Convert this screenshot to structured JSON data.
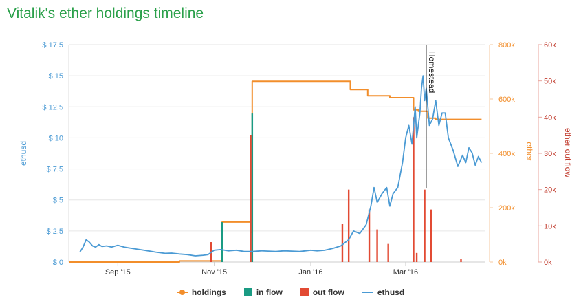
{
  "page": {
    "title": "Vitalik's ether holdings timeline"
  },
  "chart_data": {
    "type": "line",
    "title": "Vitalik's ether holdings timeline",
    "x_range": [
      "2015-08-01",
      "2016-04-20"
    ],
    "x_ticks": [
      "2015-09-01",
      "2015-11-01",
      "2016-01-01",
      "2016-03-01"
    ],
    "x_tick_labels": [
      "Sep '15",
      "Nov '15",
      "Jan '16",
      "Mar '16"
    ],
    "axes": {
      "left": {
        "label": "ethusd",
        "color": "#4a9ad4",
        "range": [
          0,
          17.5
        ],
        "ticks": [
          0,
          2.5,
          5,
          7.5,
          10,
          12.5,
          15,
          17.5
        ],
        "tick_labels": [
          "$ 0",
          "$ 2.5",
          "$ 5",
          "$ 7.5",
          "$ 10",
          "$ 12.5",
          "$ 15",
          "$ 17.5"
        ]
      },
      "ether": {
        "label": "ether",
        "color": "#f28e2b",
        "range": [
          0,
          800000
        ],
        "ticks": [
          0,
          200000,
          400000,
          600000,
          800000
        ],
        "tick_labels": [
          "0k",
          "200k",
          "400k",
          "600k",
          "800k"
        ]
      },
      "flow": {
        "label": "ether out flow",
        "color": "#c0392b",
        "range": [
          0,
          60000
        ],
        "ticks": [
          0,
          10000,
          20000,
          30000,
          40000,
          50000,
          60000
        ],
        "tick_labels": [
          "0k",
          "10k",
          "20k",
          "30k",
          "40k",
          "50k",
          "60k"
        ]
      }
    },
    "annotations": [
      {
        "text": "Homestead",
        "x": "2016-03-14"
      }
    ],
    "series": [
      {
        "name": "holdings",
        "kind": "step",
        "axis": "ether",
        "color": "#f28e2b",
        "x": [
          "2015-08-01",
          "2015-10-10",
          "2015-10-10",
          "2015-11-06",
          "2015-11-06",
          "2015-11-24",
          "2015-11-24",
          "2015-11-25",
          "2015-11-25",
          "2016-01-26",
          "2016-01-26",
          "2016-02-06",
          "2016-02-06",
          "2016-02-20",
          "2016-02-20",
          "2016-03-06",
          "2016-03-06",
          "2016-03-09",
          "2016-03-09",
          "2016-03-15",
          "2016-03-15",
          "2016-03-20",
          "2016-03-20",
          "2016-04-18"
        ],
        "values": [
          0,
          0,
          4000,
          4000,
          147000,
          147000,
          110000,
          110000,
          665000,
          665000,
          635000,
          635000,
          612000,
          612000,
          605000,
          605000,
          560000,
          560000,
          555000,
          555000,
          530000,
          530000,
          525000,
          525000
        ]
      },
      {
        "name": "in flow",
        "kind": "bar",
        "axis": "flow",
        "color": "#1a9b83",
        "x": [
          "2015-11-06",
          "2015-11-25"
        ],
        "values": [
          11000,
          41000
        ]
      },
      {
        "name": "out flow",
        "kind": "bar",
        "axis": "flow",
        "color": "#e24a33",
        "x": [
          "2015-10-30",
          "2015-11-24",
          "2016-01-21",
          "2016-01-25",
          "2016-02-07",
          "2016-02-12",
          "2016-02-19",
          "2016-03-06",
          "2016-03-08",
          "2016-03-13",
          "2016-03-17",
          "2016-04-05"
        ],
        "values": [
          5500,
          35000,
          10500,
          20000,
          14500,
          9000,
          5000,
          40000,
          2500,
          20000,
          14500,
          800
        ]
      },
      {
        "name": "ethusd",
        "kind": "line",
        "axis": "left",
        "color": "#4a9ad4",
        "x": [
          "2015-08-08",
          "2015-08-10",
          "2015-08-12",
          "2015-08-14",
          "2015-08-16",
          "2015-08-18",
          "2015-08-20",
          "2015-08-22",
          "2015-08-25",
          "2015-08-28",
          "2015-09-01",
          "2015-09-05",
          "2015-09-10",
          "2015-09-15",
          "2015-09-20",
          "2015-09-25",
          "2015-10-01",
          "2015-10-05",
          "2015-10-10",
          "2015-10-15",
          "2015-10-20",
          "2015-10-25",
          "2015-10-28",
          "2015-11-01",
          "2015-11-05",
          "2015-11-10",
          "2015-11-15",
          "2015-11-20",
          "2015-11-25",
          "2015-12-01",
          "2015-12-05",
          "2015-12-10",
          "2015-12-15",
          "2015-12-20",
          "2015-12-25",
          "2016-01-01",
          "2016-01-05",
          "2016-01-10",
          "2016-01-15",
          "2016-01-20",
          "2016-01-25",
          "2016-01-28",
          "2016-02-01",
          "2016-02-05",
          "2016-02-08",
          "2016-02-10",
          "2016-02-12",
          "2016-02-15",
          "2016-02-18",
          "2016-02-20",
          "2016-02-22",
          "2016-02-25",
          "2016-02-28",
          "2016-03-01",
          "2016-03-03",
          "2016-03-05",
          "2016-03-07",
          "2016-03-08",
          "2016-03-10",
          "2016-03-11",
          "2016-03-12",
          "2016-03-13",
          "2016-03-14",
          "2016-03-16",
          "2016-03-18",
          "2016-03-20",
          "2016-03-22",
          "2016-03-24",
          "2016-03-26",
          "2016-03-28",
          "2016-03-31",
          "2016-04-03",
          "2016-04-06",
          "2016-04-08",
          "2016-04-10",
          "2016-04-12",
          "2016-04-14",
          "2016-04-16",
          "2016-04-18"
        ],
        "values": [
          0.8,
          1.2,
          1.8,
          1.6,
          1.3,
          1.2,
          1.4,
          1.25,
          1.3,
          1.2,
          1.35,
          1.2,
          1.1,
          1.0,
          0.9,
          0.8,
          0.7,
          0.72,
          0.65,
          0.6,
          0.5,
          0.55,
          0.6,
          0.95,
          1.0,
          0.9,
          0.95,
          0.85,
          0.85,
          0.9,
          0.88,
          0.85,
          0.9,
          0.88,
          0.85,
          0.95,
          0.9,
          0.95,
          1.1,
          1.3,
          1.8,
          2.5,
          2.3,
          3.0,
          4.5,
          6.0,
          4.8,
          5.5,
          6.0,
          4.5,
          5.5,
          6.0,
          8.0,
          10.0,
          11.0,
          9.5,
          12.5,
          10.0,
          12.0,
          14.0,
          15.0,
          13.0,
          14.0,
          11.0,
          11.5,
          13.0,
          11.0,
          12.0,
          12.0,
          10.0,
          9.0,
          7.7,
          8.6,
          8.0,
          9.2,
          8.8,
          7.8,
          8.5,
          8.0
        ]
      }
    ]
  }
}
